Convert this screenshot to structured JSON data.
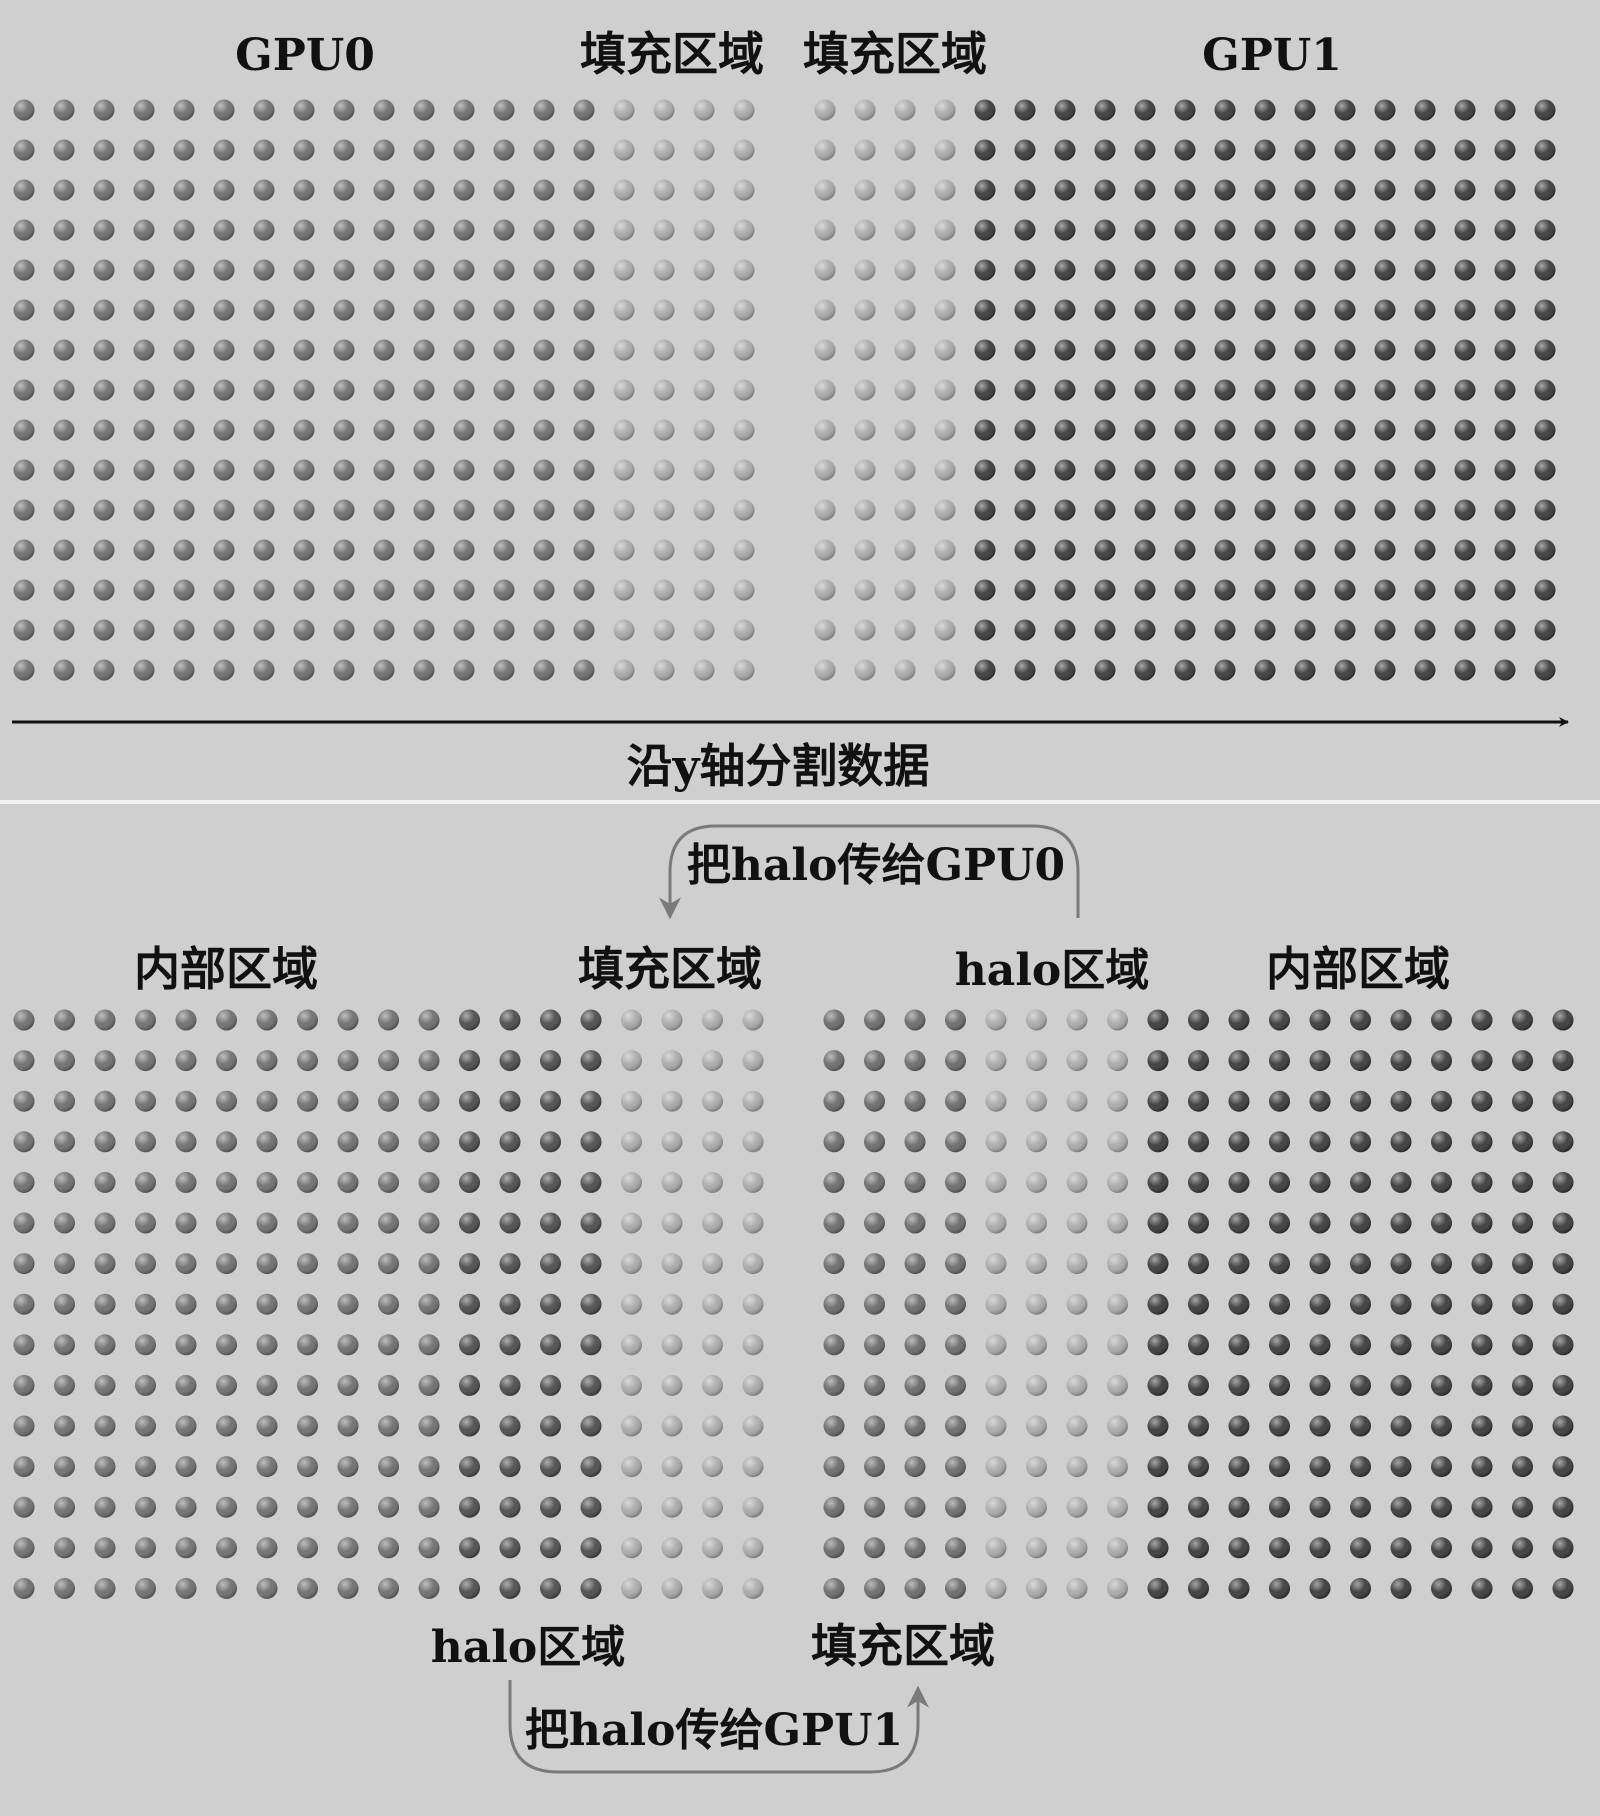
{
  "colors": {
    "background": "#cfcfcf",
    "divider": "#f2f2f2",
    "gpu0_dot": "#6e6e6e",
    "gpu1_dot": "#3a3a3a",
    "pad_dot": "#a9a9a9",
    "halo_gpu0_dot": "#4c4c4c",
    "halo_gpu1_dot": "#6a6a6a",
    "arrow": "#111111",
    "curve_arrow": "#7a7a7a"
  },
  "top": {
    "gpu0_label": "GPU0",
    "pad_label_left": "填充区域",
    "pad_label_right": "填充区域",
    "gpu1_label": "GPU1",
    "axis_caption": "沿y轴分割数据",
    "grid_rows": 15,
    "left_columns": {
      "gpu0": 15,
      "pad": 4
    },
    "right_columns": {
      "pad": 4,
      "gpu1": 15
    }
  },
  "bottom": {
    "interior_label_left": "内部区域",
    "pad_label_left": "填充区域",
    "halo_label_right": "halo区域",
    "interior_label_right": "内部区域",
    "halo_label_left_bottom": "halo区域",
    "pad_label_right_bottom": "填充区域",
    "transfer_to_gpu0": "把halo传给GPU0",
    "transfer_to_gpu1": "把halo传给GPU1",
    "grid_rows": 15,
    "left_columns": {
      "interior": 11,
      "halo": 4,
      "pad": 4
    },
    "right_columns": {
      "halo": 4,
      "pad": 4,
      "interior": 11
    }
  }
}
